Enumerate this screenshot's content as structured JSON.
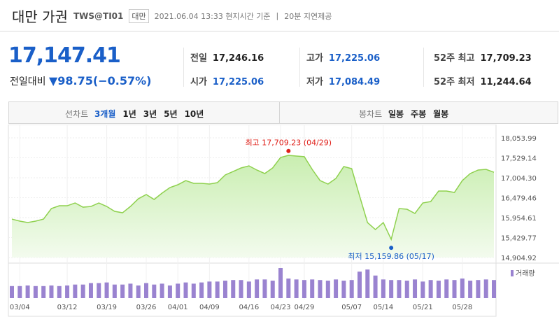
{
  "header": {
    "title": "대만 가권",
    "code": "TWS@TI01",
    "badge": "대만",
    "time": "2021.06.04 13:33 현지시간 기준",
    "delay": "20분 지연제공"
  },
  "quote": {
    "price": "17,147.41",
    "change_label": "전일대비",
    "change": "▼98.75(−0.57%)",
    "stats": [
      {
        "label": "전일",
        "value": "17,246.16",
        "color": "#222"
      },
      {
        "label": "고가",
        "value": "17,225.06",
        "color": "#1a5fc8"
      },
      {
        "label": "52주 최고",
        "value": "17,709.23",
        "color": "#222"
      },
      {
        "label": "시가",
        "value": "17,225.06",
        "color": "#1a5fc8"
      },
      {
        "label": "저가",
        "value": "17,084.49",
        "color": "#1a5fc8"
      },
      {
        "label": "52주 최저",
        "value": "11,244.64",
        "color": "#222"
      }
    ]
  },
  "tabs": {
    "line_label": "선차트",
    "line_options": [
      "3개월",
      "1년",
      "3년",
      "5년",
      "10년"
    ],
    "candle_label": "봉차트",
    "candle_options": [
      "일봉",
      "주봉",
      "월봉"
    ]
  },
  "chart_data": {
    "type": "area",
    "color": "#8fd14f",
    "categories": [
      null,
      "03/04",
      null,
      null,
      null,
      null,
      null,
      "03/12",
      null,
      null,
      null,
      null,
      "03/19",
      null,
      null,
      null,
      null,
      "03/26",
      null,
      null,
      null,
      "04/01",
      null,
      null,
      null,
      "04/09",
      null,
      null,
      null,
      null,
      "04/16",
      null,
      null,
      null,
      "04/23",
      null,
      null,
      "04/29",
      null,
      null,
      null,
      null,
      null,
      "05/07",
      null,
      null,
      null,
      "05/14",
      null,
      null,
      null,
      null,
      "05/21",
      null,
      null,
      null,
      null,
      "05/28",
      null,
      null,
      null,
      null
    ],
    "values": [
      15917,
      15862,
      15825,
      15862,
      15917,
      16194,
      16267,
      16267,
      16341,
      16230,
      16249,
      16341,
      16249,
      16120,
      16083,
      16249,
      16451,
      16562,
      16433,
      16599,
      16746,
      16820,
      16930,
      16857,
      16857,
      16838,
      16875,
      17078,
      17170,
      17262,
      17317,
      17207,
      17115,
      17262,
      17538,
      17593,
      17575,
      17560,
      17225,
      16930,
      16838,
      16986,
      17299,
      17244,
      16525,
      15825,
      15641,
      15825,
      15383,
      16194,
      16175,
      16065,
      16341,
      16378,
      16654,
      16654,
      16617,
      16930,
      17115,
      17207,
      17225,
      17147.41
    ],
    "ylim": [
      14904.92,
      18053.99
    ],
    "yticks": [
      {
        "value": 18053.99,
        "label": "18,053.99"
      },
      {
        "value": 17529.14,
        "label": "17,529.14"
      },
      {
        "value": 17004.3,
        "label": "17,004.30"
      },
      {
        "value": 16479.46,
        "label": "16,479.46"
      },
      {
        "value": 15954.61,
        "label": "15,954.61"
      },
      {
        "value": 15429.77,
        "label": "15,429.77"
      },
      {
        "value": 14904.92,
        "label": "14,904.92"
      }
    ],
    "annotations": [
      {
        "kind": "high",
        "text": "최고 17,709.23 (04/29)",
        "value": 17709.23,
        "color": "#e0201a"
      },
      {
        "kind": "low",
        "text": "최저 15,159.86 (05/17)",
        "value": 15159.86,
        "color": "#1a5fc8"
      }
    ],
    "volume": {
      "name": "거래량",
      "color": "#9a83d0",
      "ylim": [
        0,
        100
      ],
      "values": [
        40,
        40,
        42,
        40,
        40,
        42,
        40,
        42,
        45,
        45,
        50,
        50,
        52,
        45,
        45,
        48,
        42,
        50,
        45,
        48,
        42,
        48,
        52,
        48,
        52,
        55,
        55,
        58,
        60,
        60,
        55,
        62,
        62,
        58,
        100,
        65,
        62,
        60,
        62,
        60,
        58,
        62,
        58,
        60,
        88,
        95,
        75,
        62,
        60,
        60,
        58,
        62,
        55,
        60,
        58,
        62,
        60,
        65,
        58,
        60,
        62,
        60
      ]
    }
  }
}
